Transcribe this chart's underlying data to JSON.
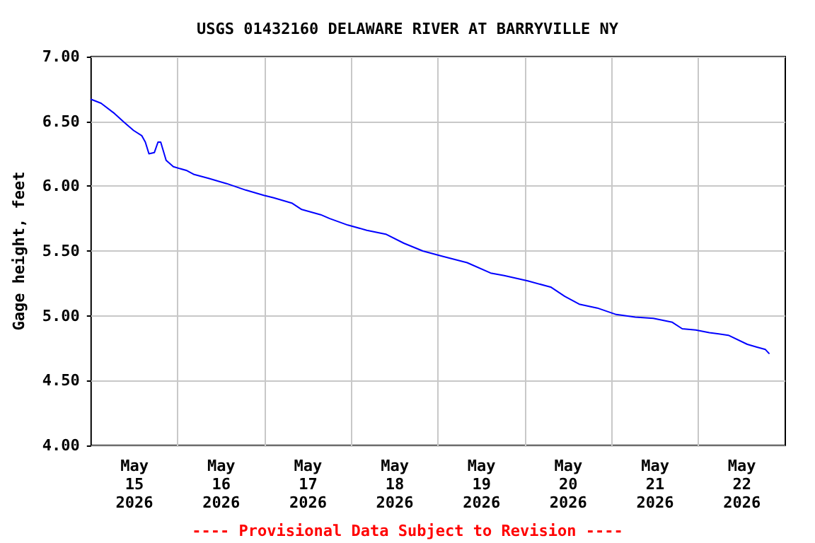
{
  "chart_data": {
    "type": "line",
    "title": "USGS 01432160 DELAWARE RIVER AT BARRYVILLE NY",
    "ylabel": "Gage height, feet",
    "annotations": [
      "---- Provisional Data Subject to Revision ----"
    ],
    "x": [
      "2026-05-15T00:00",
      "2026-05-15T02:45",
      "2026-05-15T06:30",
      "2026-05-15T09:15",
      "2026-05-15T11:45",
      "2026-05-15T14:00",
      "2026-05-15T15:00",
      "2026-05-15T16:00",
      "2026-05-15T17:30",
      "2026-05-15T18:30",
      "2026-05-15T19:15",
      "2026-05-15T20:45",
      "2026-05-15T22:45",
      "2026-05-16T02:30",
      "2026-05-16T04:30",
      "2026-05-16T08:30",
      "2026-05-16T13:30",
      "2026-05-16T18:45",
      "2026-05-16T23:45",
      "2026-05-17T02:30",
      "2026-05-17T05:00",
      "2026-05-17T07:30",
      "2026-05-17T10:15",
      "2026-05-17T15:30",
      "2026-05-17T18:00",
      "2026-05-17T23:00",
      "2026-05-18T04:15",
      "2026-05-18T09:30",
      "2026-05-18T14:30",
      "2026-05-18T19:45",
      "2026-05-19T01:00",
      "2026-05-19T08:00",
      "2026-05-19T14:30",
      "2026-05-19T18:15",
      "2026-05-20T00:45",
      "2026-05-20T07:15",
      "2026-05-20T11:00",
      "2026-05-20T15:00",
      "2026-05-20T20:00",
      "2026-05-21T01:15",
      "2026-05-21T06:30",
      "2026-05-21T11:30",
      "2026-05-21T16:45",
      "2026-05-21T19:30",
      "2026-05-21T23:15",
      "2026-05-22T03:00",
      "2026-05-22T08:15",
      "2026-05-22T13:30",
      "2026-05-22T16:00",
      "2026-05-22T18:30",
      "2026-05-22T19:30"
    ],
    "series": [
      {
        "color": "#0000ff",
        "values": [
          6.67,
          6.64,
          6.56,
          6.49,
          6.43,
          6.39,
          6.34,
          6.25,
          6.26,
          6.34,
          6.34,
          6.2,
          6.15,
          6.12,
          6.09,
          6.06,
          6.02,
          5.97,
          5.93,
          5.91,
          5.89,
          5.87,
          5.82,
          5.78,
          5.75,
          5.7,
          5.66,
          5.63,
          5.56,
          5.5,
          5.46,
          5.41,
          5.33,
          5.31,
          5.27,
          5.22,
          5.15,
          5.09,
          5.06,
          5.01,
          4.99,
          4.98,
          4.95,
          4.9,
          4.89,
          4.87,
          4.85,
          4.78,
          4.76,
          4.74,
          4.71
        ]
      }
    ],
    "xlim": [
      "2026-05-15T00:00",
      "2026-05-23T00:00"
    ],
    "xticks": [
      {
        "value": "2026-05-15T12:00",
        "label": "May\n15\n2026"
      },
      {
        "value": "2026-05-16T12:00",
        "label": "May\n16\n2026"
      },
      {
        "value": "2026-05-17T12:00",
        "label": "May\n17\n2026"
      },
      {
        "value": "2026-05-18T12:00",
        "label": "May\n18\n2026"
      },
      {
        "value": "2026-05-19T12:00",
        "label": "May\n19\n2026"
      },
      {
        "value": "2026-05-20T12:00",
        "label": "May\n20\n2026"
      },
      {
        "value": "2026-05-21T12:00",
        "label": "May\n21\n2026"
      },
      {
        "value": "2026-05-22T12:00",
        "label": "May\n22\n2026"
      },
      {
        "value": "2026-05-16T00:00",
        "label": null
      },
      {
        "value": "2026-05-17T00:00",
        "label": null
      },
      {
        "value": "2026-05-18T00:00",
        "label": null
      },
      {
        "value": "2026-05-19T00:00",
        "label": null
      },
      {
        "value": "2026-05-20T00:00",
        "label": null
      },
      {
        "value": "2026-05-21T00:00",
        "label": null
      },
      {
        "value": "2026-05-22T00:00",
        "label": null
      }
    ],
    "ylim": [
      4,
      7
    ],
    "yticks": [
      {
        "value": 4,
        "label": "4.00"
      },
      {
        "value": 4.5,
        "label": "4.50"
      },
      {
        "value": 5,
        "label": "5.00"
      },
      {
        "value": 5.5,
        "label": "5.50"
      },
      {
        "value": 6,
        "label": "6.00"
      },
      {
        "value": 6.5,
        "label": "6.50"
      },
      {
        "value": 7,
        "label": "7.00"
      }
    ],
    "grid": true,
    "marker": "none",
    "line_style": "solid"
  }
}
